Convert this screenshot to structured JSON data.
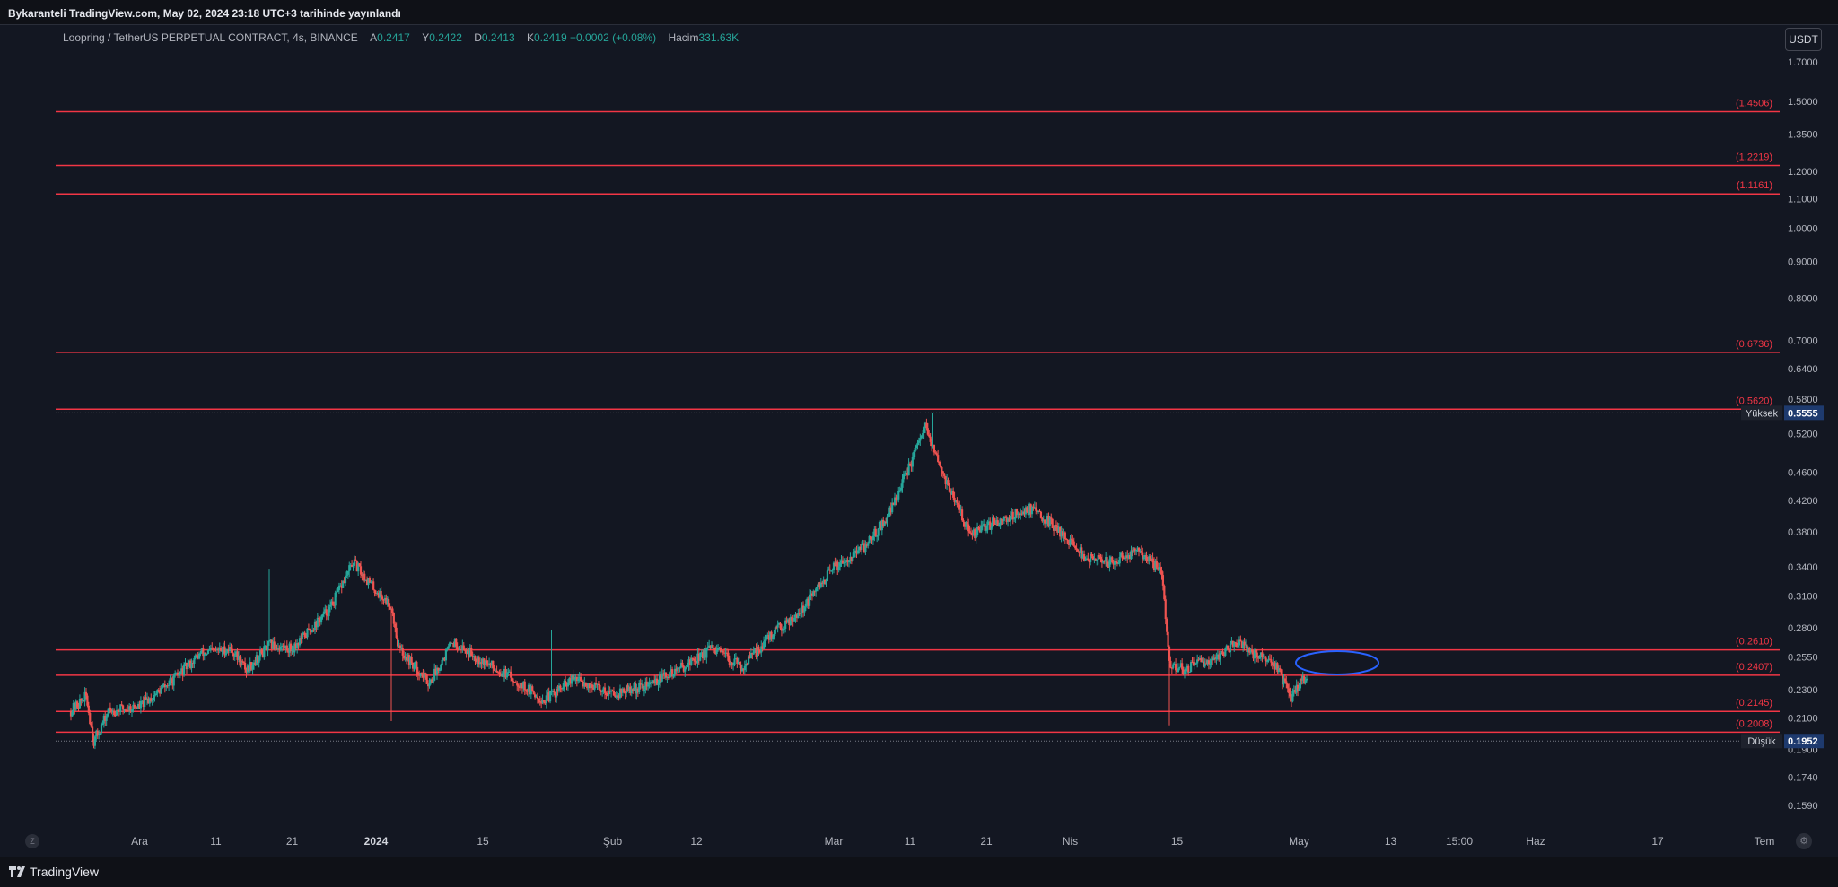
{
  "header": {
    "published": "Bykaranteli TradingView.com, May 02, 2024 23:18 UTC+3 tarihinde yayınlandı"
  },
  "legend": {
    "symbol": "Loopring / TetherUS PERPETUAL CONTRACT, 4s, BINANCE",
    "open_label": "A",
    "open": "0.2417",
    "high_label": "Y",
    "high": "0.2422",
    "low_label": "D",
    "low": "0.2413",
    "close_label": "K",
    "close": "0.2419",
    "change": "+0.0002 (+0.08%)",
    "volume_label": "Hacim",
    "volume": "331.63K"
  },
  "currency_button": "USDT",
  "time_zone_label": "Z",
  "footer": {
    "brand": "TradingView"
  },
  "colors": {
    "background": "#131722",
    "up": "#26a69a",
    "down": "#ef5350",
    "level_line": "#f23645",
    "ellipse": "#2962ff",
    "axis_text": "#b2b5be"
  },
  "chart_data": {
    "type": "candlestick",
    "symbol": "LRCUSDT.P",
    "timeframe": "4s",
    "y_scale": "log",
    "ylim": [
      0.154,
      1.74
    ],
    "y_ticks": [
      "1.7000",
      "1.5000",
      "1.3500",
      "1.2000",
      "1.1000",
      "1.0000",
      "0.9000",
      "0.8000",
      "0.7000",
      "0.6400",
      "0.5800",
      "0.5200",
      "0.4600",
      "0.4200",
      "0.3800",
      "0.3400",
      "0.3100",
      "0.2800",
      "0.2550",
      "0.2300",
      "0.2100",
      "0.1900",
      "0.1740",
      "0.1590"
    ],
    "x_tick_labels": [
      "Ara",
      "11",
      "21",
      "2024",
      "15",
      "Şub",
      "12",
      "Mar",
      "11",
      "21",
      "Nis",
      "15",
      "May",
      "13",
      "15:00",
      "Haz",
      "17",
      "Tem"
    ],
    "horizontal_levels": [
      1.4506,
      1.2219,
      1.1161,
      0.6736,
      0.562,
      0.261,
      0.2407,
      0.2145,
      0.2008
    ],
    "high_marker": {
      "label": "Yüksek",
      "value": "0.5555"
    },
    "low_marker": {
      "label": "Düşük",
      "value": "0.1952"
    },
    "price_path": [
      [
        "2023-11-22",
        0.215
      ],
      [
        "2023-11-24",
        0.225
      ],
      [
        "2023-11-25",
        0.195
      ],
      [
        "2023-11-27",
        0.215
      ],
      [
        "2023-12-01",
        0.218
      ],
      [
        "2023-12-05",
        0.235
      ],
      [
        "2023-12-09",
        0.258
      ],
      [
        "2023-12-13",
        0.262
      ],
      [
        "2023-12-15",
        0.245
      ],
      [
        "2023-12-18",
        0.265
      ],
      [
        "2023-12-21",
        0.262
      ],
      [
        "2023-12-26",
        0.298
      ],
      [
        "2023-12-29",
        0.345
      ],
      [
        "2024-01-01",
        0.315
      ],
      [
        "2024-01-03",
        0.3
      ],
      [
        "2024-01-04",
        0.262
      ],
      [
        "2024-01-08",
        0.235
      ],
      [
        "2024-01-11",
        0.268
      ],
      [
        "2024-01-15",
        0.252
      ],
      [
        "2024-01-19",
        0.238
      ],
      [
        "2024-01-23",
        0.222
      ],
      [
        "2024-01-27",
        0.238
      ],
      [
        "2024-02-01",
        0.227
      ],
      [
        "2024-02-05",
        0.232
      ],
      [
        "2024-02-09",
        0.243
      ],
      [
        "2024-02-14",
        0.262
      ],
      [
        "2024-02-18",
        0.247
      ],
      [
        "2024-02-22",
        0.275
      ],
      [
        "2024-02-26",
        0.298
      ],
      [
        "2024-03-01",
        0.34
      ],
      [
        "2024-03-05",
        0.362
      ],
      [
        "2024-03-08",
        0.398
      ],
      [
        "2024-03-11",
        0.47
      ],
      [
        "2024-03-13",
        0.53
      ],
      [
        "2024-03-14",
        0.495
      ],
      [
        "2024-03-16",
        0.44
      ],
      [
        "2024-03-19",
        0.375
      ],
      [
        "2024-03-22",
        0.392
      ],
      [
        "2024-03-27",
        0.41
      ],
      [
        "2024-03-31",
        0.378
      ],
      [
        "2024-04-03",
        0.35
      ],
      [
        "2024-04-06",
        0.345
      ],
      [
        "2024-04-10",
        0.358
      ],
      [
        "2024-04-13",
        0.335
      ],
      [
        "2024-04-14",
        0.25
      ],
      [
        "2024-04-16",
        0.245
      ],
      [
        "2024-04-20",
        0.255
      ],
      [
        "2024-04-23",
        0.268
      ],
      [
        "2024-04-25",
        0.258
      ],
      [
        "2024-04-28",
        0.248
      ],
      [
        "2024-04-30",
        0.224
      ],
      [
        "2024-05-02",
        0.2419
      ]
    ],
    "annotations": [
      {
        "type": "ellipse",
        "color": "#2962ff",
        "center_date": "2024-05-06",
        "center_price": 0.2505
      }
    ]
  }
}
